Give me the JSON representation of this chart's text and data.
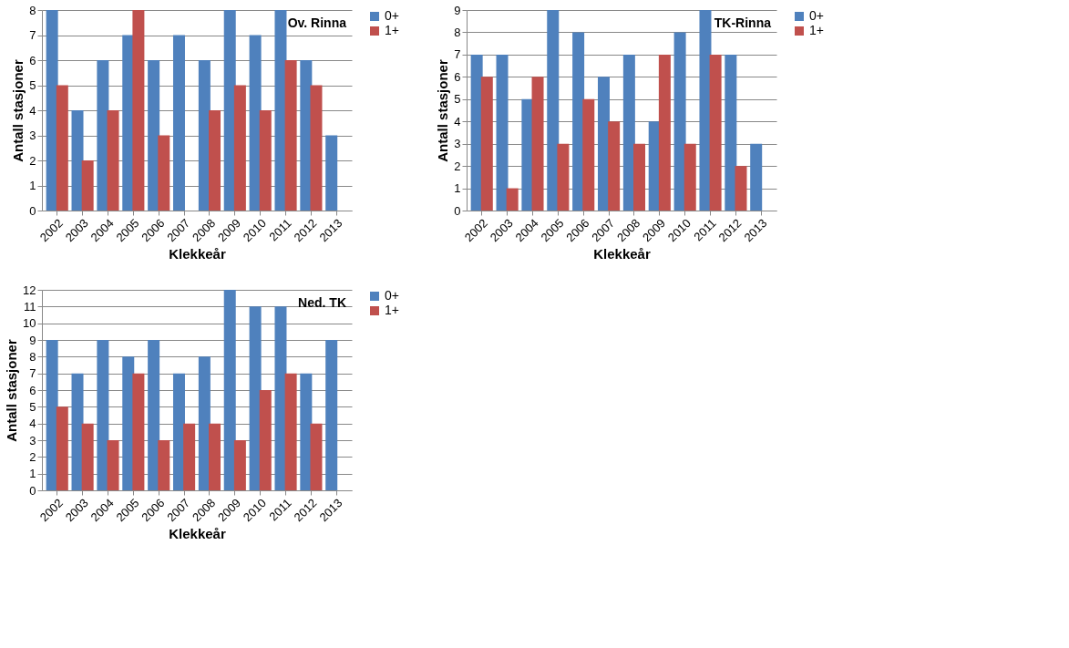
{
  "chart_data": [
    {
      "type": "bar",
      "title": "Ov. Rinna",
      "xlabel": "Klekkeår",
      "ylabel": "Antall stasjoner",
      "categories": [
        "2002",
        "2003",
        "2004",
        "2005",
        "2006",
        "2007",
        "2008",
        "2009",
        "2010",
        "2011",
        "2012",
        "2013"
      ],
      "series": [
        {
          "name": "0+",
          "color": "#4f81bd",
          "values": [
            8,
            4,
            6,
            7,
            6,
            7,
            6,
            8,
            7,
            8,
            6,
            3
          ]
        },
        {
          "name": "1+",
          "color": "#c0504d",
          "values": [
            5,
            2,
            4,
            8,
            3,
            0,
            4,
            5,
            4,
            6,
            5,
            0
          ]
        }
      ],
      "ylim": [
        0,
        8
      ],
      "yticks": [
        0,
        1,
        2,
        3,
        4,
        5,
        6,
        7,
        8
      ],
      "grid": "y",
      "legend": "right"
    },
    {
      "type": "bar",
      "title": "TK-Rinna",
      "xlabel": "Klekkeår",
      "ylabel": "Antall stasjoner",
      "categories": [
        "2002",
        "2003",
        "2004",
        "2005",
        "2006",
        "2007",
        "2008",
        "2009",
        "2010",
        "2011",
        "2012",
        "2013"
      ],
      "series": [
        {
          "name": "0+",
          "color": "#4f81bd",
          "values": [
            7,
            7,
            5,
            9,
            8,
            6,
            7,
            4,
            8,
            9,
            7,
            3
          ]
        },
        {
          "name": "1+",
          "color": "#c0504d",
          "values": [
            6,
            1,
            6,
            3,
            5,
            4,
            3,
            7,
            3,
            7,
            2,
            0
          ]
        }
      ],
      "ylim": [
        0,
        9
      ],
      "yticks": [
        0,
        1,
        2,
        3,
        4,
        5,
        6,
        7,
        8,
        9
      ],
      "grid": "y",
      "legend": "right"
    },
    {
      "type": "bar",
      "title": "Ned. TK",
      "xlabel": "Klekkeår",
      "ylabel": "Antall stasjoner",
      "categories": [
        "2002",
        "2003",
        "2004",
        "2005",
        "2006",
        "2007",
        "2008",
        "2009",
        "2010",
        "2011",
        "2012",
        "2013"
      ],
      "series": [
        {
          "name": "0+",
          "color": "#4f81bd",
          "values": [
            9,
            7,
            9,
            8,
            9,
            7,
            8,
            12,
            11,
            11,
            7,
            9
          ]
        },
        {
          "name": "1+",
          "color": "#c0504d",
          "values": [
            5,
            4,
            3,
            7,
            3,
            4,
            4,
            3,
            6,
            7,
            4,
            0
          ]
        }
      ],
      "ylim": [
        0,
        12
      ],
      "yticks": [
        0,
        1,
        2,
        3,
        4,
        5,
        6,
        7,
        8,
        9,
        10,
        11,
        12
      ],
      "grid": "y",
      "legend": "right"
    }
  ]
}
